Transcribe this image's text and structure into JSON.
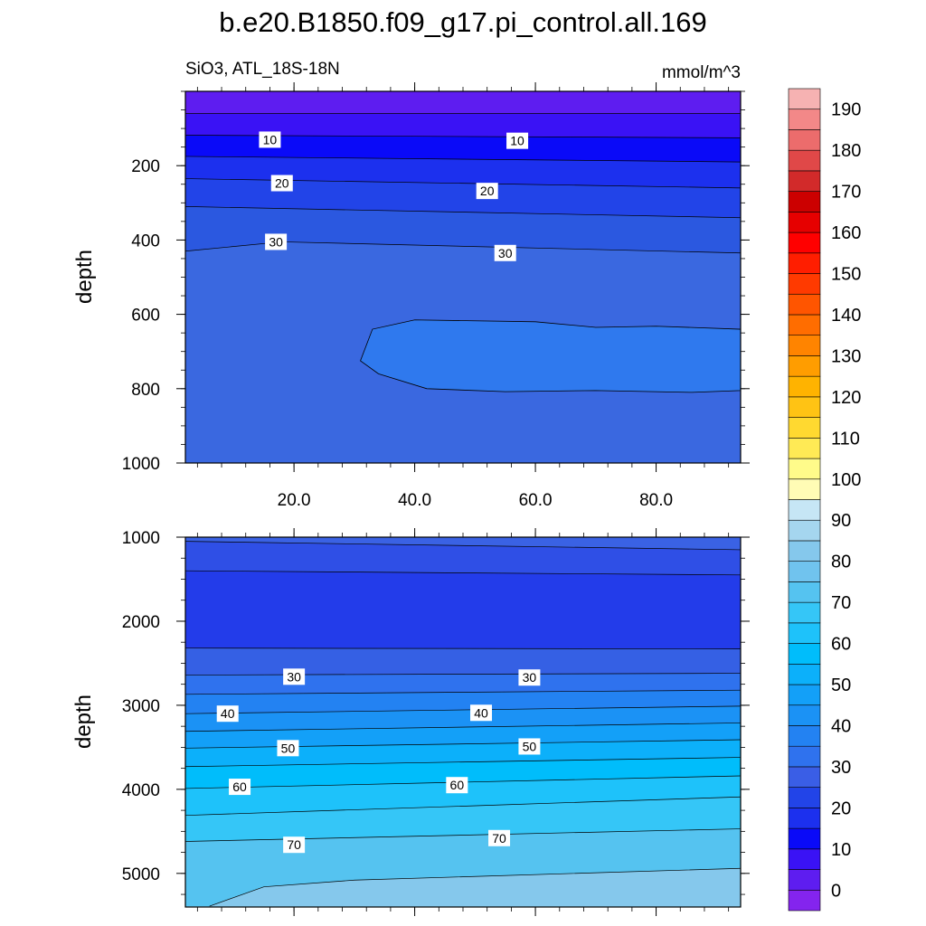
{
  "title": "b.e20.B1850.f09_g17.pi_control.all.169",
  "subtitle_left": "SiO3, ATL_18S-18N",
  "subtitle_right": "mmol/m^3",
  "chart_data": [
    {
      "type": "heatmap",
      "panel": "upper",
      "ylabel": "depth",
      "y_inverted": true,
      "ylim": [
        1000,
        0
      ],
      "xlim": [
        2,
        94
      ],
      "yticks": [
        200,
        400,
        600,
        800,
        1000
      ],
      "xticks": [
        "20.0",
        "40.0",
        "60.0",
        "80.0"
      ],
      "contours": [
        {
          "level": 5,
          "depth": [
            [
              2,
              60
            ],
            [
              94,
              60
            ]
          ],
          "fill": "#5e1df0"
        },
        {
          "level": 10,
          "depth": [
            [
              2,
              118
            ],
            [
              94,
              125
            ]
          ],
          "fill": "#3a12f5"
        },
        {
          "level": 15,
          "depth": [
            [
              2,
              175
            ],
            [
              94,
              190
            ]
          ],
          "fill": "#0a0af8"
        },
        {
          "level": 20,
          "depth": [
            [
              2,
              235
            ],
            [
              94,
              260
            ]
          ],
          "fill": "#1c30ee"
        },
        {
          "level": 25,
          "depth": [
            [
              2,
              310
            ],
            [
              94,
              340
            ]
          ],
          "fill": "#2244e8"
        },
        {
          "level": 30,
          "depth": [
            [
              2,
              430
            ],
            [
              18,
              405
            ],
            [
              94,
              435
            ]
          ],
          "fill": "#2b58e0"
        }
      ],
      "contour_labels": [
        {
          "text": "10",
          "x": 16,
          "depth": 130
        },
        {
          "text": "10",
          "x": 57,
          "depth": 133
        },
        {
          "text": "20",
          "x": 18,
          "depth": 247
        },
        {
          "text": "20",
          "x": 52,
          "depth": 268
        },
        {
          "text": "30",
          "x": 17,
          "depth": 405
        },
        {
          "text": "30",
          "x": 55,
          "depth": 435
        }
      ],
      "regions": [
        {
          "level": 35,
          "fill": "#3a68e0"
        },
        {
          "level": 40,
          "fill": "#2f79ee",
          "depth_outline": [
            [
              31,
              725
            ],
            [
              33,
              640
            ],
            [
              40,
              615
            ],
            [
              60,
              620
            ],
            [
              70,
              635
            ],
            [
              80,
              632
            ],
            [
              94,
              640
            ],
            [
              94,
              805
            ],
            [
              86,
              810
            ],
            [
              70,
              805
            ],
            [
              55,
              808
            ],
            [
              42,
              800
            ],
            [
              34,
              760
            ]
          ]
        }
      ]
    },
    {
      "type": "heatmap",
      "panel": "lower",
      "ylabel": "depth",
      "y_inverted": true,
      "ylim": [
        5400,
        1000
      ],
      "xlim": [
        2,
        94
      ],
      "yticks": [
        1000,
        2000,
        3000,
        4000,
        5000
      ],
      "contours": [
        {
          "level": 25,
          "depth": [
            [
              2,
              1050
            ],
            [
              94,
              1150
            ]
          ],
          "fill": "#3a5ee6"
        },
        {
          "level": 20,
          "depth": [
            [
              2,
              1400
            ],
            [
              94,
              1450
            ]
          ],
          "fill": "#2f4fe6"
        },
        {
          "level": 25,
          "depth": [
            [
              2,
              2320
            ],
            [
              94,
              2330
            ]
          ],
          "fill": "#233cea"
        },
        {
          "level": 30,
          "depth": [
            [
              2,
              2640
            ],
            [
              94,
              2620
            ]
          ],
          "fill": "#3560e4"
        },
        {
          "level": 35,
          "depth": [
            [
              2,
              2870
            ],
            [
              94,
              2820
            ]
          ],
          "fill": "#2f72ee"
        },
        {
          "level": 40,
          "depth": [
            [
              2,
              3100
            ],
            [
              94,
              3010
            ]
          ],
          "fill": "#2382f2"
        },
        {
          "level": 45,
          "depth": [
            [
              2,
              3310
            ],
            [
              94,
              3210
            ]
          ],
          "fill": "#1b92f5"
        },
        {
          "level": 50,
          "depth": [
            [
              2,
              3510
            ],
            [
              94,
              3410
            ]
          ],
          "fill": "#13a0f8"
        },
        {
          "level": 55,
          "depth": [
            [
              2,
              3730
            ],
            [
              94,
              3620
            ]
          ],
          "fill": "#0cb0fa"
        },
        {
          "level": 60,
          "depth": [
            [
              2,
              3990
            ],
            [
              94,
              3840
            ]
          ],
          "fill": "#00bdfb"
        },
        {
          "level": 65,
          "depth": [
            [
              2,
              4310
            ],
            [
              94,
              4090
            ]
          ],
          "fill": "#1ec2fa"
        },
        {
          "level": 70,
          "depth": [
            [
              2,
              4620
            ],
            [
              94,
              4470
            ]
          ],
          "fill": "#35c6f7"
        },
        {
          "level": 75,
          "depth": [
            [
              6,
              5390
            ],
            [
              15,
              5160
            ],
            [
              30,
              5080
            ],
            [
              94,
              4940
            ]
          ],
          "fill": "#55c3f0"
        }
      ],
      "contour_labels": [
        {
          "text": "30",
          "x": 20,
          "depth": 2660
        },
        {
          "text": "30",
          "x": 59,
          "depth": 2670
        },
        {
          "text": "40",
          "x": 9,
          "depth": 3100
        },
        {
          "text": "40",
          "x": 51,
          "depth": 3090
        },
        {
          "text": "50",
          "x": 19,
          "depth": 3510
        },
        {
          "text": "50",
          "x": 59,
          "depth": 3490
        },
        {
          "text": "60",
          "x": 11,
          "depth": 3970
        },
        {
          "text": "60",
          "x": 47,
          "depth": 3950
        },
        {
          "text": "70",
          "x": 20,
          "depth": 4660
        },
        {
          "text": "70",
          "x": 54,
          "depth": 4580
        }
      ],
      "bottom_fill": "#85c8ec",
      "top_fill": "#3a62e4"
    }
  ],
  "colorbar": {
    "labels": [
      "0",
      "10",
      "20",
      "30",
      "40",
      "50",
      "60",
      "70",
      "80",
      "90",
      "100",
      "110",
      "120",
      "130",
      "140",
      "150",
      "160",
      "170",
      "180",
      "190"
    ],
    "colors": [
      "#8424ee",
      "#5e1df0",
      "#3a12f5",
      "#0a0af8",
      "#1c30ee",
      "#2244e8",
      "#3a5ee6",
      "#2f72ee",
      "#2382f2",
      "#1b92f5",
      "#13a0f8",
      "#0cb0fa",
      "#00bdfb",
      "#1ec2fa",
      "#35c6f7",
      "#55c3f0",
      "#70c3ee",
      "#85c8ec",
      "#a5d6ef",
      "#c6e6f5",
      "#fffcb5",
      "#fffb8a",
      "#ffea55",
      "#ffd930",
      "#ffc314",
      "#ffb300",
      "#ff9d00",
      "#ff8400",
      "#ff6d00",
      "#ff5500",
      "#ff3a00",
      "#ff1e00",
      "#ff0000",
      "#e60000",
      "#cc0000",
      "#d22a2a",
      "#e04848",
      "#ec6c6c",
      "#f38888",
      "#f6b2b2"
    ]
  }
}
